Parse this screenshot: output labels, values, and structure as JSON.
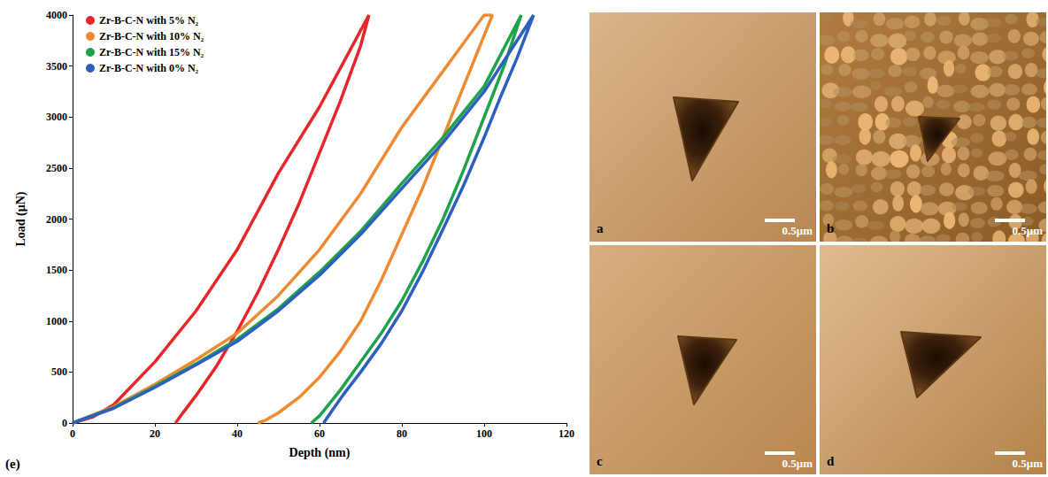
{
  "chart_data": {
    "type": "line",
    "x_label": "Depth (nm)",
    "y_label": "Load (μN)",
    "annotations": [
      "(e)"
    ],
    "xlim": [
      0,
      120
    ],
    "xticks": [
      0,
      20,
      40,
      60,
      80,
      100,
      120
    ],
    "ylim": [
      0,
      4000
    ],
    "yticks": [
      0,
      500,
      1000,
      1500,
      2000,
      2500,
      3000,
      3500,
      4000
    ],
    "grid": false,
    "legend": "upper left",
    "series": [
      {
        "name": "Zr-B-C-N with 5% N₂",
        "color": "#e8262a",
        "x": [
          0,
          5,
          10,
          20,
          30,
          40,
          50,
          60,
          66,
          72,
          70,
          65,
          60,
          55,
          50,
          45,
          40,
          35,
          30,
          27,
          25
        ],
        "values": [
          0,
          60,
          180,
          600,
          1100,
          1700,
          2450,
          3100,
          3550,
          4000,
          3700,
          3150,
          2650,
          2150,
          1700,
          1280,
          900,
          560,
          270,
          110,
          0
        ]
      },
      {
        "name": "Zr-B-C-N with 10% N₂",
        "color": "#f08a32",
        "x": [
          0,
          10,
          20,
          30,
          40,
          50,
          60,
          70,
          80,
          90,
          100,
          102,
          95,
          90,
          85,
          80,
          75,
          70,
          65,
          60,
          55,
          50,
          47,
          45
        ],
        "values": [
          0,
          160,
          380,
          620,
          880,
          1250,
          1700,
          2250,
          2900,
          3450,
          4000,
          4000,
          3300,
          2800,
          2300,
          1850,
          1400,
          1000,
          700,
          450,
          250,
          100,
          30,
          0
        ]
      },
      {
        "name": "Zr-B-C-N with 15% N₂",
        "color": "#1fa34a",
        "x": [
          0,
          10,
          20,
          30,
          40,
          50,
          60,
          70,
          80,
          90,
          100,
          109,
          105,
          100,
          95,
          90,
          85,
          80,
          75,
          70,
          65,
          62,
          60,
          58
        ],
        "values": [
          0,
          150,
          360,
          580,
          820,
          1120,
          1480,
          1880,
          2350,
          2800,
          3300,
          4000,
          3520,
          3000,
          2480,
          2000,
          1580,
          1200,
          880,
          600,
          320,
          170,
          70,
          0
        ]
      },
      {
        "name": "Zr-B-C-N with 0% N₂",
        "color": "#2e5fbf",
        "x": [
          0,
          10,
          20,
          30,
          40,
          50,
          60,
          70,
          80,
          90,
          100,
          112,
          108,
          104,
          100,
          95,
          90,
          85,
          80,
          75,
          70,
          66,
          63,
          61
        ],
        "values": [
          0,
          145,
          350,
          570,
          800,
          1100,
          1450,
          1850,
          2300,
          2750,
          3250,
          4000,
          3580,
          3200,
          2800,
          2330,
          1900,
          1480,
          1100,
          780,
          500,
          290,
          120,
          0
        ]
      }
    ]
  },
  "micrographs": [
    {
      "label": "a",
      "scale_bar": "0.5μm"
    },
    {
      "label": "b",
      "scale_bar": "0.5μm"
    },
    {
      "label": "c",
      "scale_bar": "0.5μm"
    },
    {
      "label": "d",
      "scale_bar": "0.5μm"
    }
  ]
}
